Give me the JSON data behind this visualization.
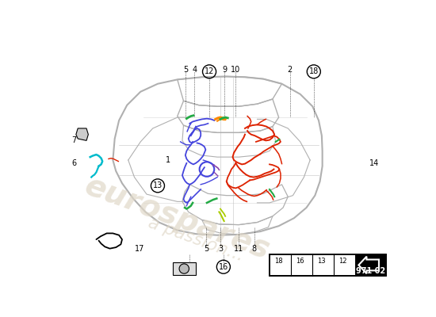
{
  "bg_color": "#ffffff",
  "car_outline_color": "#b0b0b0",
  "car_inner_color": "#c8c8c8",
  "wiring": {
    "blue": "#4444dd",
    "red": "#dd2200",
    "green": "#22aa44",
    "cyan": "#00bbcc",
    "orange": "#ff8800",
    "yellow_green": "#aacc00",
    "purple": "#8844aa",
    "pink": "#ff4488"
  },
  "watermark_color": "#e0d8c8",
  "label_fontsize": 7,
  "page_code": "971 02"
}
